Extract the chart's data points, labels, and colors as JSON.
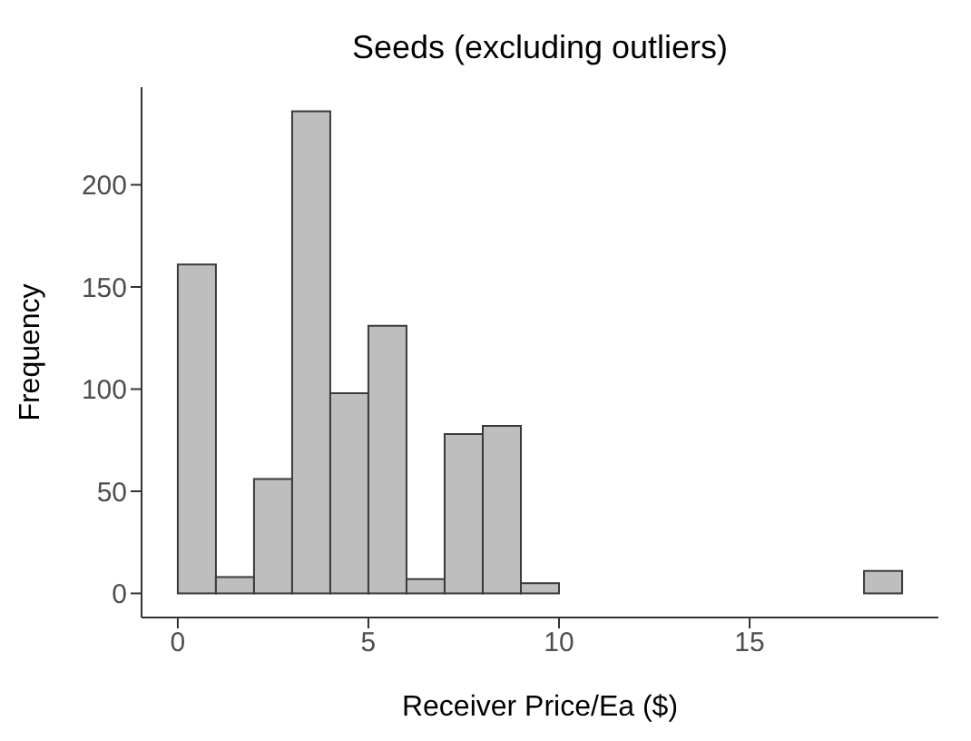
{
  "chart_data": {
    "type": "histogram",
    "title": "Seeds (excluding outliers)",
    "xlabel": "Receiver Price/Ea ($)",
    "ylabel": "Frequency",
    "bins": [
      0,
      1,
      2,
      3,
      4,
      5,
      6,
      7,
      8,
      9,
      10,
      11,
      12,
      13,
      14,
      15,
      16,
      17,
      18,
      19
    ],
    "values": [
      161,
      8,
      56,
      236,
      98,
      131,
      7,
      78,
      82,
      5,
      0,
      0,
      0,
      0,
      0,
      0,
      0,
      0,
      11
    ],
    "color": "#bebebe",
    "xlim": [
      -0.95,
      19.95
    ],
    "xticks": [
      0,
      5,
      10,
      15
    ],
    "ylim": [
      -11.8,
      247.8
    ],
    "yticks": [
      0,
      50,
      100,
      150,
      200
    ],
    "grid": false
  }
}
